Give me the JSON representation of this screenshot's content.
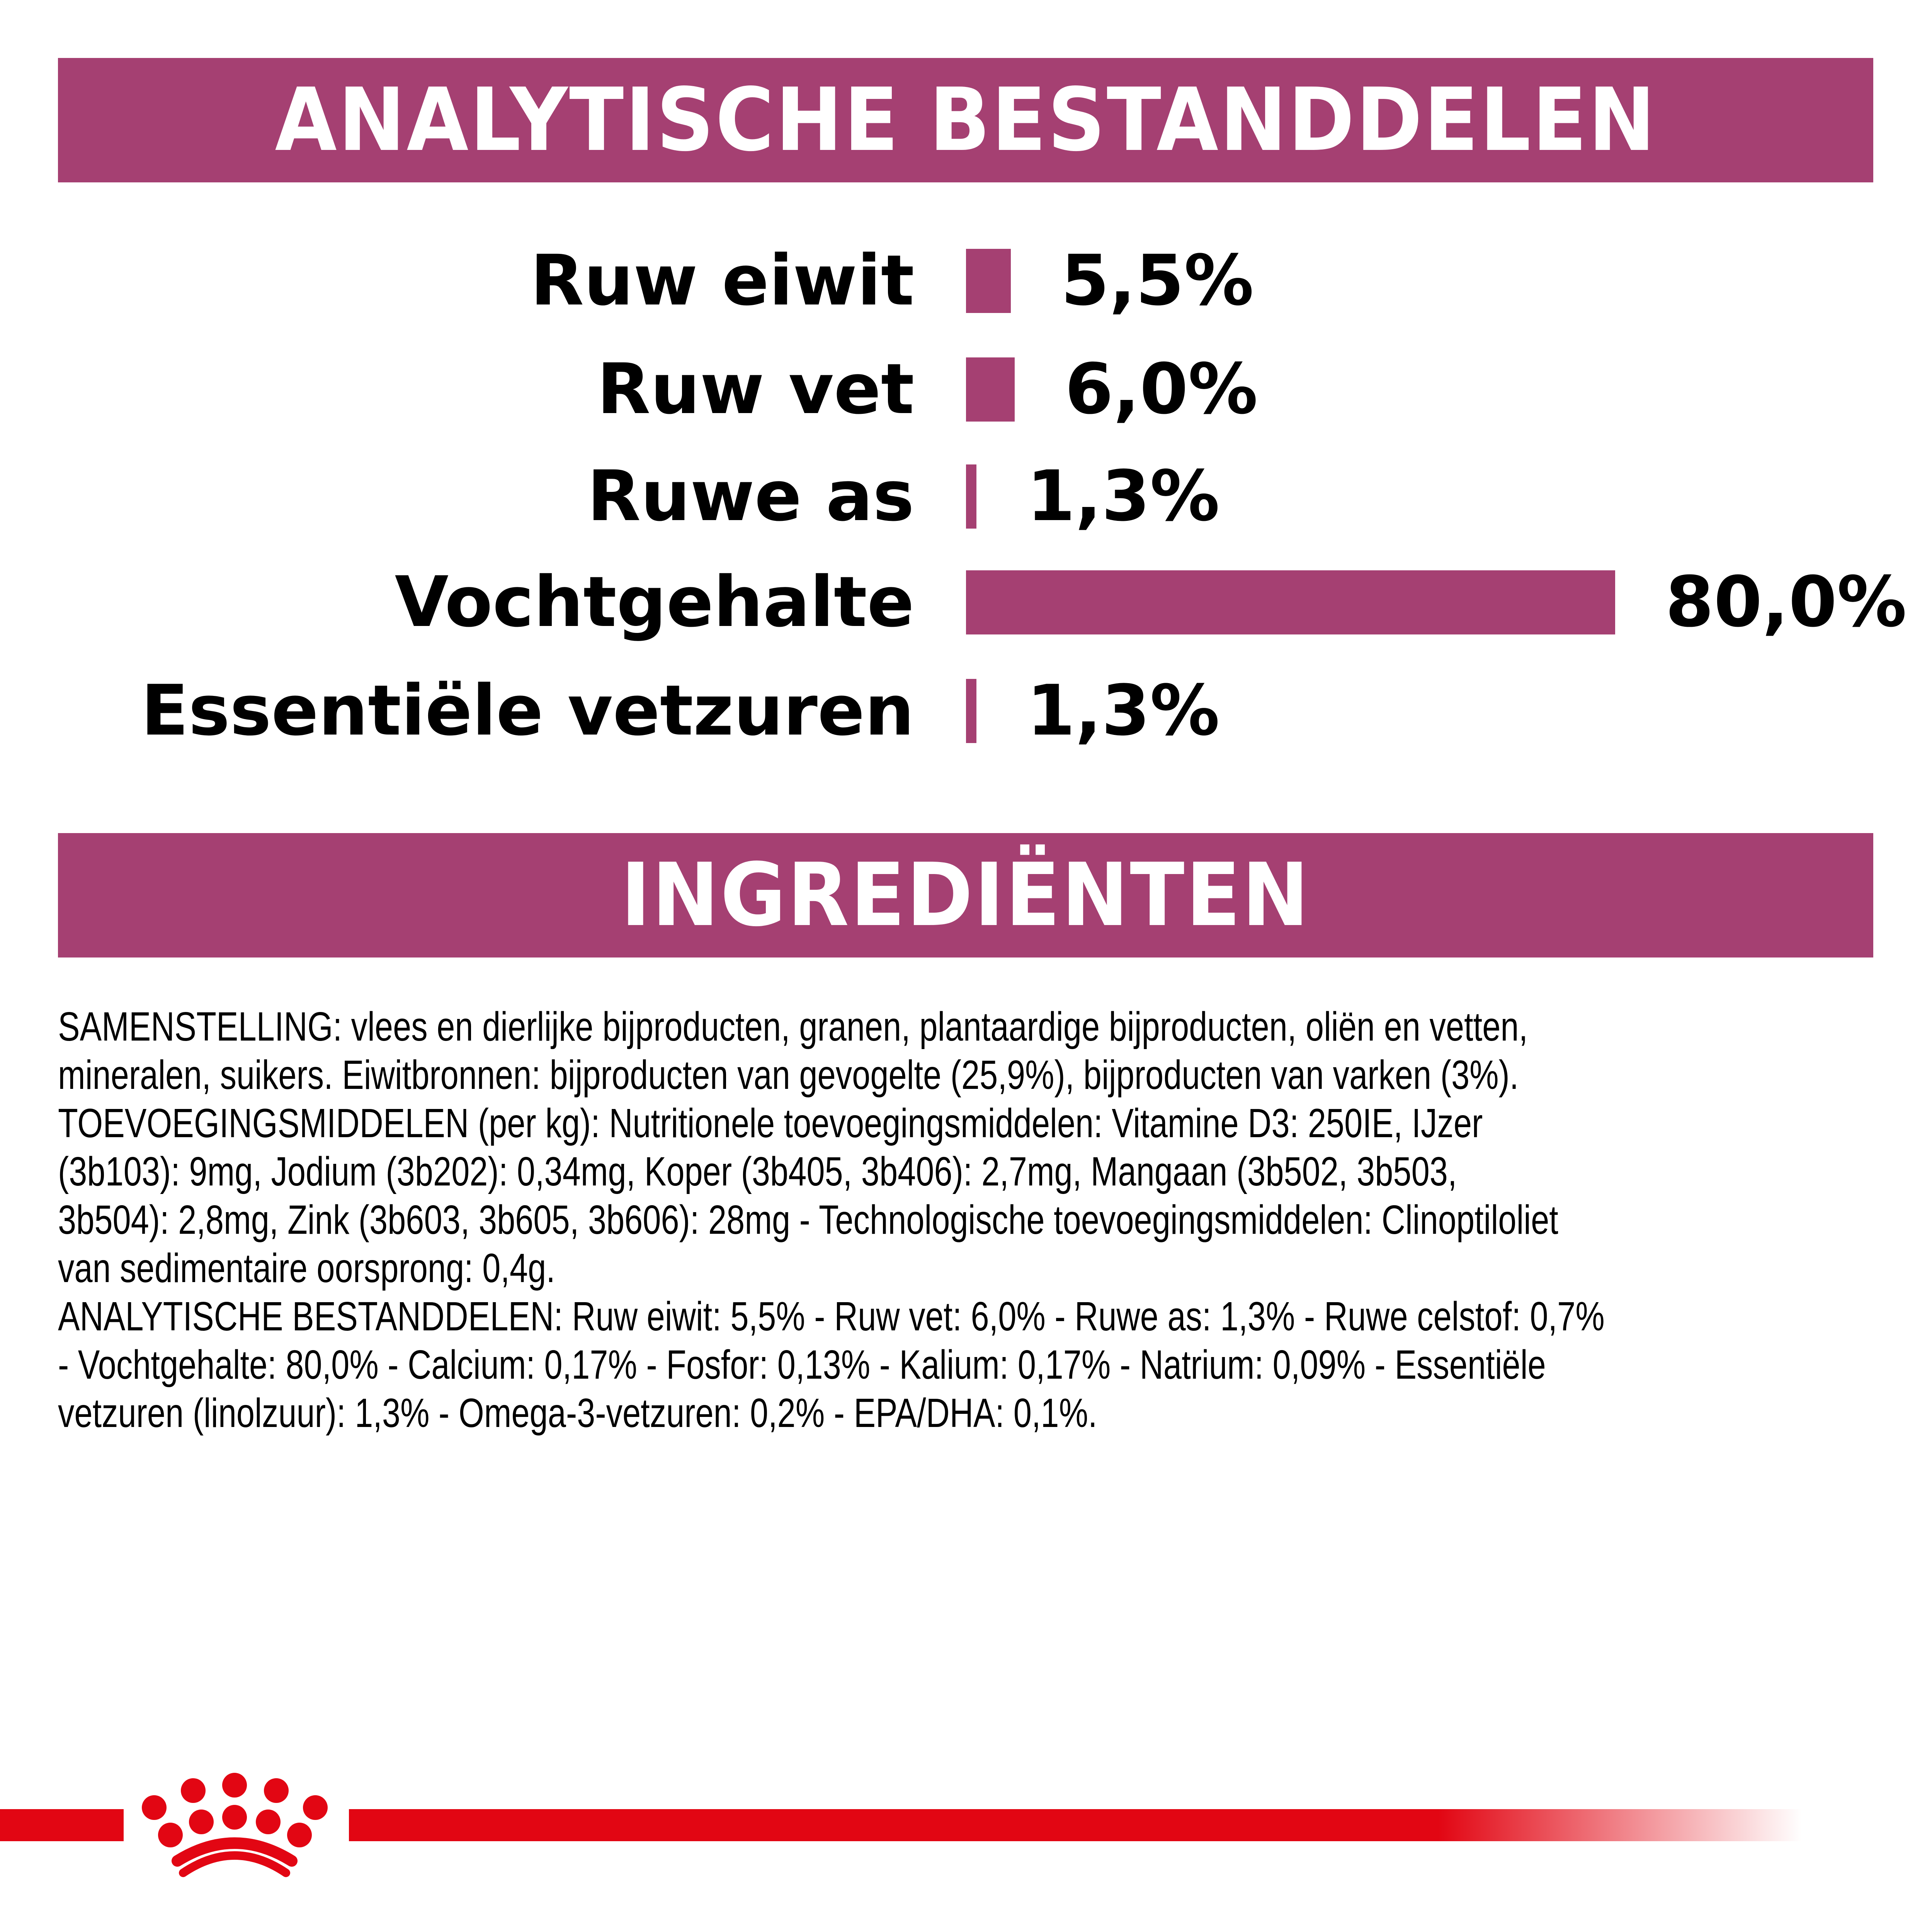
{
  "analytical": {
    "title": "ANALYTISCHE BESTANDDELEN",
    "bar_color": "#a54072",
    "rows": [
      {
        "label": "Ruw eiwit",
        "value": 5.5,
        "value_label": "5,5%"
      },
      {
        "label": "Ruw vet",
        "value": 6.0,
        "value_label": "6,0%"
      },
      {
        "label": "Ruwe as",
        "value": 1.3,
        "value_label": "1,3%"
      },
      {
        "label": "Vochtgehalte",
        "value": 80.0,
        "value_label": "80,0%"
      },
      {
        "label": "Essentiële vetzuren",
        "value": 1.3,
        "value_label": "1,3%"
      }
    ]
  },
  "ingredients": {
    "title": "INGREDIËNTEN",
    "lines": [
      "SAMENSTELLING: vlees en dierlijke bijproducten, granen, plantaardige bijproducten, oliën en vetten,",
      "mineralen, suikers. Eiwitbronnen: bijproducten van gevogelte (25,9%), bijproducten van varken (3%).",
      "TOEVOEGINGSMIDDELEN (per kg): Nutritionele toevoegingsmiddelen: Vitamine D3: 250IE, IJzer",
      "(3b103): 9mg, Jodium (3b202): 0,34mg, Koper (3b405, 3b406): 2,7mg, Mangaan (3b502, 3b503,",
      "3b504): 2,8mg, Zink (3b603, 3b605, 3b606): 28mg - Technologische toevoegingsmiddelen: Clinoptiloliet",
      "van sedimentaire oorsprong: 0,4g.",
      "ANALYTISCHE BESTANDDELEN: Ruw eiwit: 5,5% - Ruw vet: 6,0% - Ruwe as: 1,3% - Ruwe celstof: 0,7%",
      "- Vochtgehalte: 80,0% - Calcium: 0,17% - Fosfor: 0,13% - Kalium: 0,17% - Natrium: 0,09% - Essentiële",
      "vetzuren (linolzuur): 1,3% - Omega-3-vetzuren: 0,2% - EPA/DHA: 0,1%."
    ]
  },
  "footer": {
    "logo_icon": "royal-canin-crown-logo",
    "brand_color": "#e20613"
  }
}
